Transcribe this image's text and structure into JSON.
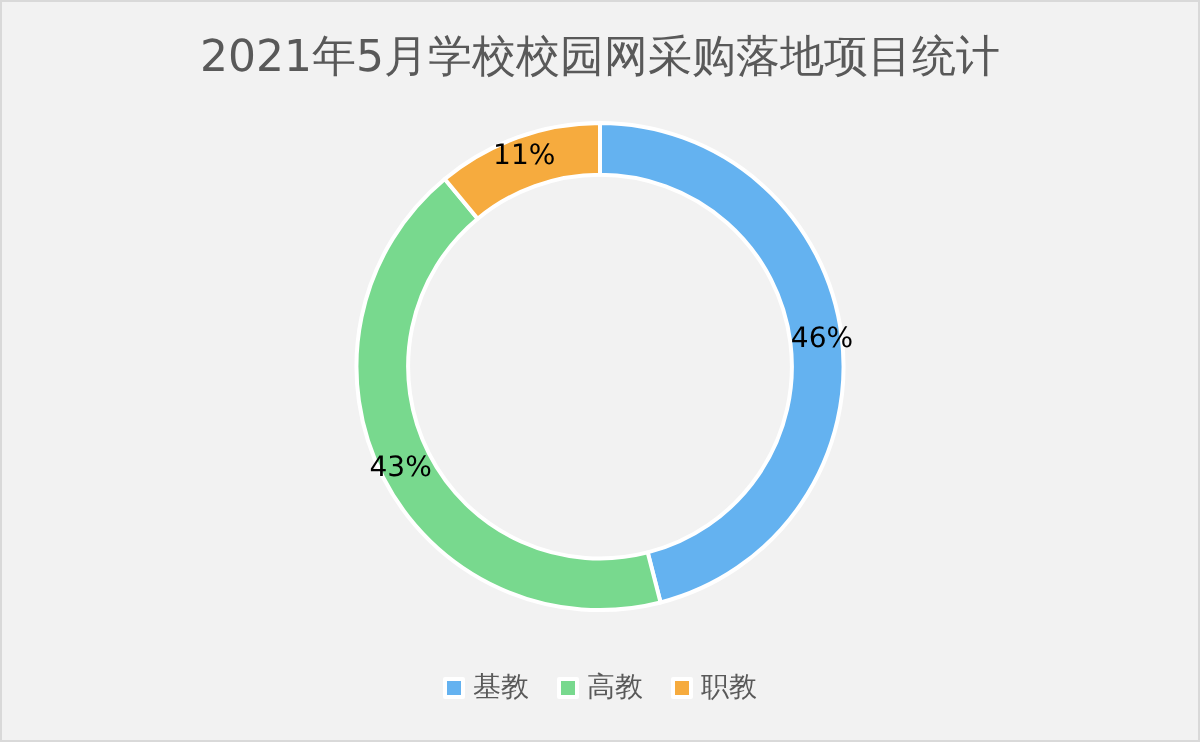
{
  "chart_data": {
    "type": "donut",
    "title": "2021年5月学校校园网采购落地项目统计",
    "categories": [
      "基教",
      "高教",
      "职教"
    ],
    "values": [
      46,
      43,
      11
    ],
    "colors": [
      "#64b2f0",
      "#78d98e",
      "#f6ab3e"
    ],
    "value_labels": [
      "46%",
      "43%",
      "11%"
    ],
    "legend": "bottom"
  }
}
